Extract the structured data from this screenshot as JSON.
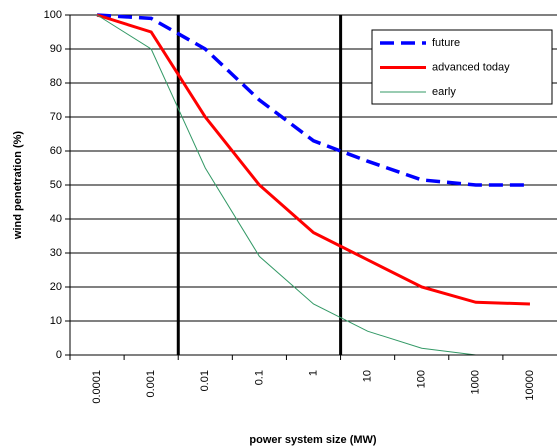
{
  "chart_data": {
    "type": "line",
    "x_label": "power system size (MW)",
    "y_label": "wind penetration (%)",
    "categories": [
      "0.0001",
      "0.001",
      "0.01",
      "0.1",
      "1",
      "10",
      "100",
      "1000",
      "10000"
    ],
    "series": [
      {
        "name": "future",
        "color": "#0000ff",
        "values": [
          100,
          99,
          90,
          75,
          63,
          57,
          51.5,
          50,
          50
        ]
      },
      {
        "name": "advanced today",
        "color": "#ff0000",
        "values": [
          100,
          95,
          70,
          50,
          36,
          28,
          20,
          15.5,
          15
        ]
      },
      {
        "name": "early",
        "color": "#339966",
        "values": [
          100,
          90,
          55,
          29,
          15,
          7,
          2,
          0,
          0
        ]
      }
    ],
    "ylim": [
      0,
      100
    ],
    "yticks": [
      0,
      10,
      20,
      30,
      40,
      50,
      60,
      70,
      80,
      90,
      100
    ],
    "grid": true,
    "legend": "upper right"
  }
}
